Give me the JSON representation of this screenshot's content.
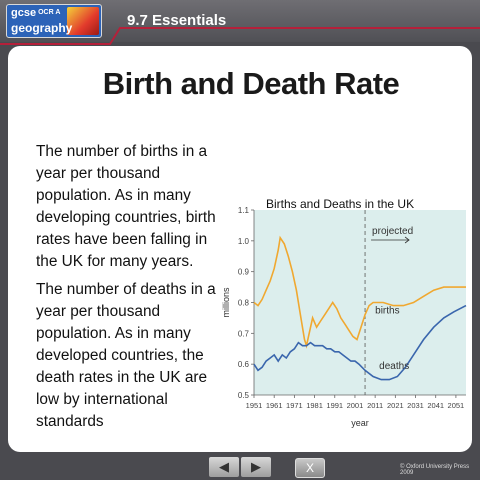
{
  "header": {
    "logo": {
      "line1": "gcse",
      "line1_tag": "OCR A",
      "line2": "geography"
    },
    "section_title": "9.7 Essentials"
  },
  "slide": {
    "title": "Birth and Death Rate",
    "paragraphs": [
      "The number of births in a year per thousand population. As in many developing countries, birth rates have been falling in the UK for many years.",
      "The number of deaths in a year per thousand population. As in many developed countries, the death rates in the UK are low by international standards"
    ]
  },
  "chart_data": {
    "type": "line",
    "title": "Births and Deaths in the UK",
    "xlabel": "year",
    "ylabel": "millions",
    "xlim": [
      1951,
      2056
    ],
    "ylim": [
      0.5,
      1.1
    ],
    "x_ticks": [
      "1951",
      "1961",
      "1971",
      "1981",
      "1991",
      "2001",
      "2011",
      "2021",
      "2031",
      "2041",
      "2051"
    ],
    "y_ticks": [
      "0.5",
      "0.6",
      "0.7",
      "0.8",
      "0.9",
      "1.0",
      "1.1"
    ],
    "annotation": {
      "label": "projected",
      "x": 2006
    },
    "colors": {
      "births": "#f0a830",
      "deaths": "#3a66ad",
      "plot_bg": "#dceeed"
    },
    "series": [
      {
        "name": "births",
        "x": [
          1951,
          1953,
          1955,
          1957,
          1959,
          1961,
          1963,
          1964,
          1966,
          1968,
          1970,
          1972,
          1974,
          1976,
          1977,
          1978,
          1980,
          1982,
          1984,
          1986,
          1988,
          1990,
          1992,
          1994,
          1996,
          1998,
          2000,
          2002,
          2004,
          2006,
          2008,
          2010,
          2012,
          2015,
          2020,
          2025,
          2030,
          2035,
          2040,
          2045,
          2050,
          2056
        ],
        "y": [
          0.8,
          0.79,
          0.81,
          0.84,
          0.87,
          0.91,
          0.97,
          1.01,
          0.99,
          0.95,
          0.9,
          0.84,
          0.76,
          0.68,
          0.66,
          0.69,
          0.75,
          0.72,
          0.74,
          0.76,
          0.78,
          0.8,
          0.78,
          0.75,
          0.73,
          0.71,
          0.69,
          0.68,
          0.72,
          0.76,
          0.79,
          0.8,
          0.8,
          0.8,
          0.79,
          0.79,
          0.8,
          0.82,
          0.84,
          0.85,
          0.85,
          0.85
        ]
      },
      {
        "name": "deaths",
        "x": [
          1951,
          1953,
          1955,
          1957,
          1959,
          1961,
          1963,
          1965,
          1967,
          1969,
          1971,
          1973,
          1975,
          1977,
          1979,
          1981,
          1983,
          1985,
          1987,
          1989,
          1991,
          1993,
          1995,
          1997,
          1999,
          2001,
          2003,
          2006,
          2010,
          2014,
          2018,
          2022,
          2026,
          2030,
          2035,
          2040,
          2045,
          2050,
          2056
        ],
        "y": [
          0.6,
          0.58,
          0.59,
          0.61,
          0.62,
          0.63,
          0.61,
          0.63,
          0.62,
          0.64,
          0.65,
          0.67,
          0.66,
          0.66,
          0.67,
          0.66,
          0.66,
          0.66,
          0.65,
          0.65,
          0.64,
          0.64,
          0.63,
          0.62,
          0.61,
          0.61,
          0.6,
          0.58,
          0.56,
          0.55,
          0.55,
          0.56,
          0.59,
          0.63,
          0.68,
          0.72,
          0.75,
          0.77,
          0.79
        ]
      }
    ]
  },
  "footer": {
    "prev_icon": "prev-arrow-icon",
    "next_icon": "next-arrow-icon",
    "close_label": "X",
    "copyright": "© Oxford University Press 2009"
  }
}
